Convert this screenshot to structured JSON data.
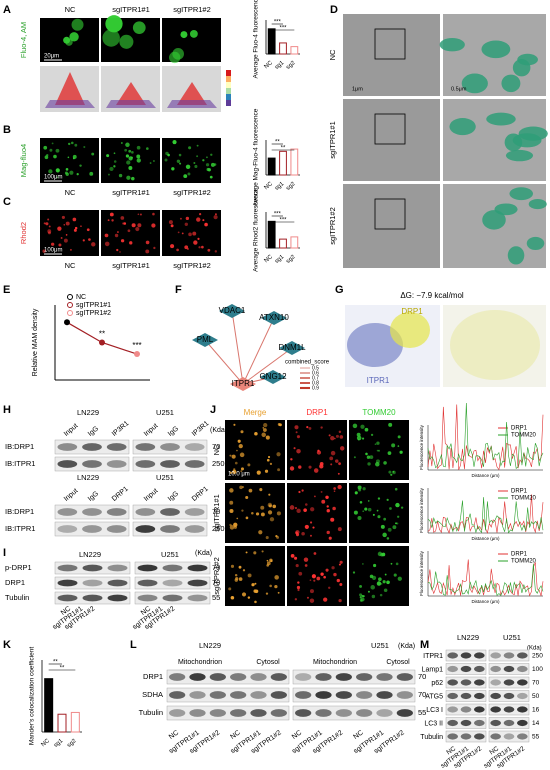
{
  "panels": {
    "A": {
      "letter": "A",
      "columns": [
        "NC",
        "sgITPR1#1",
        "sgITPR1#2"
      ],
      "row_label": "Fluo-4, AM",
      "scale_bar": "20μm",
      "chart": {
        "ylabel": "Average Fluo-4 fluorescence",
        "categories": [
          "NC",
          "sg1",
          "sg2"
        ],
        "values": [
          8.2,
          3.6,
          2.4
        ],
        "colors": [
          "#000000",
          "#a31f24",
          "#f08a8a"
        ],
        "significance": [
          "***",
          "***"
        ]
      }
    },
    "B": {
      "letter": "B",
      "columns": [
        "NC",
        "sgITPR1#1",
        "sgITPR1#2"
      ],
      "row_label": "Mag-fluo4",
      "scale_bar": "100μm",
      "chart": {
        "ylabel": "Average Mag-Fluo-4 fluorescence",
        "categories": [
          "NC",
          "sg1",
          "sg2"
        ],
        "values": [
          3.0,
          4.2,
          4.6
        ],
        "colors": [
          "#000000",
          "#a31f24",
          "#f08a8a"
        ],
        "significance": [
          "**",
          "**"
        ]
      }
    },
    "C": {
      "letter": "C",
      "columns": [
        "NC",
        "sgITPR1#1",
        "sgITPR1#2"
      ],
      "row_label": "Rhod2",
      "scale_bar": "100μm",
      "chart": {
        "ylabel": "Average Rhod2 fluorescence",
        "categories": [
          "NC",
          "sg1",
          "sg2"
        ],
        "values": [
          6.0,
          2.0,
          2.5
        ],
        "colors": [
          "#000000",
          "#a31f24",
          "#f08a8a"
        ],
        "significance": [
          "***",
          "***"
        ]
      }
    },
    "D": {
      "letter": "D",
      "rows": [
        "NC",
        "sgITPR1#1",
        "sgITPR1#2"
      ],
      "scale_bars": [
        "1μm",
        "0.5μm"
      ]
    },
    "E": {
      "letter": "E",
      "ylabel": "Relative MAM density",
      "legend": [
        "NC",
        "sgITPR1#1",
        "sgITPR1#2"
      ],
      "values": [
        1.0,
        0.65,
        0.45
      ],
      "colors": [
        "#000000",
        "#a31f24",
        "#f08a8a"
      ],
      "significance": [
        "**",
        "***"
      ]
    },
    "F": {
      "letter": "F",
      "nodes": [
        "VDAC1",
        "ATXN10",
        "PML",
        "DNM1L",
        "GNG12",
        "ITPR1"
      ],
      "legend_title": "combined_score",
      "legend_values": [
        0.5,
        0.6,
        0.7,
        0.8,
        0.9
      ]
    },
    "G": {
      "letter": "G",
      "energy": "ΔG: −7.9 kcal/mol",
      "labels": [
        "DRP1",
        "ITPR1"
      ]
    },
    "H": {
      "letter": "H",
      "unit": "(Kda)",
      "blots": [
        {
          "cells": [
            "LN229",
            "U251"
          ],
          "lanes": [
            "Input",
            "IgG",
            "IP3R1",
            "Input",
            "IgG",
            "IP3R1"
          ],
          "rows": [
            "IB:DRP1",
            "IB:ITPR1"
          ],
          "sizes": [
            70,
            250
          ]
        },
        {
          "cells": [
            "LN229",
            "U251"
          ],
          "lanes": [
            "Input",
            "IgG",
            "DRP1",
            "Input",
            "IgG",
            "DRP1"
          ],
          "rows": [
            "IB:DRP1",
            "IB:ITPR1"
          ],
          "sizes": [
            70,
            250
          ]
        }
      ]
    },
    "I": {
      "letter": "I",
      "unit": "(Kda)",
      "cells": [
        "LN229",
        "U251"
      ],
      "rows": [
        "p-DRP1",
        "DRP1",
        "Tubulin"
      ],
      "sizes": [
        70,
        70,
        55
      ],
      "lanes": [
        "NC",
        "sgITPR1#1",
        "sgITPR1#2",
        "NC",
        "sgITPR1#1",
        "sgITPR1#2"
      ]
    },
    "J": {
      "letter": "J",
      "columns": [
        "Merge",
        "DRP1",
        "TOMM20"
      ],
      "rows": [
        "NC",
        "sgITPR1#1",
        "sgITPR1#2"
      ],
      "scale_bar": "10.0 μm",
      "plot_legend": [
        "DRP1",
        "TOMM20"
      ],
      "plot_ylabel": "Fluorescence intensity",
      "plot_xlabel": "Distance (μm)"
    },
    "K": {
      "letter": "K",
      "ylabel": "Mander's colocalization coefficient",
      "categories": [
        "NC",
        "sg1",
        "sg2"
      ],
      "values": [
        0.6,
        0.2,
        0.22
      ],
      "colors": [
        "#000000",
        "#a31f24",
        "#f08a8a"
      ],
      "significance": [
        "**",
        "**"
      ]
    },
    "L": {
      "letter": "L",
      "unit": "(Kda)",
      "cells": [
        "LN229",
        "U251"
      ],
      "fractions": [
        "Mitochondrion",
        "Cytosol",
        "Mitochondrion",
        "Cytosol"
      ],
      "rows": [
        "DRP1",
        "SDHA",
        "Tubulin"
      ],
      "sizes": [
        70,
        70,
        55
      ],
      "lanes": [
        "NC",
        "sgITPR1#1",
        "sgITPR1#2",
        "NC",
        "sgITPR1#1",
        "sgITPR1#2",
        "NC",
        "sgITPR1#1",
        "sgITPR1#2",
        "NC",
        "sgITPR1#1",
        "sgITPR1#2"
      ]
    },
    "M": {
      "letter": "M",
      "unit": "(Kda)",
      "cells": [
        "LN229",
        "U251"
      ],
      "rows": [
        "ITPR1",
        "Lamp1",
        "p62",
        "ATG5",
        "LC3 I",
        "LC3 II",
        "Tubulin"
      ],
      "sizes": [
        250,
        100,
        70,
        50,
        16,
        14,
        55
      ],
      "lanes": [
        "NC",
        "sgITPR1#1",
        "sgITPR1#2",
        "NC",
        "sgITPR1#1",
        "sgITPR1#2"
      ]
    }
  }
}
